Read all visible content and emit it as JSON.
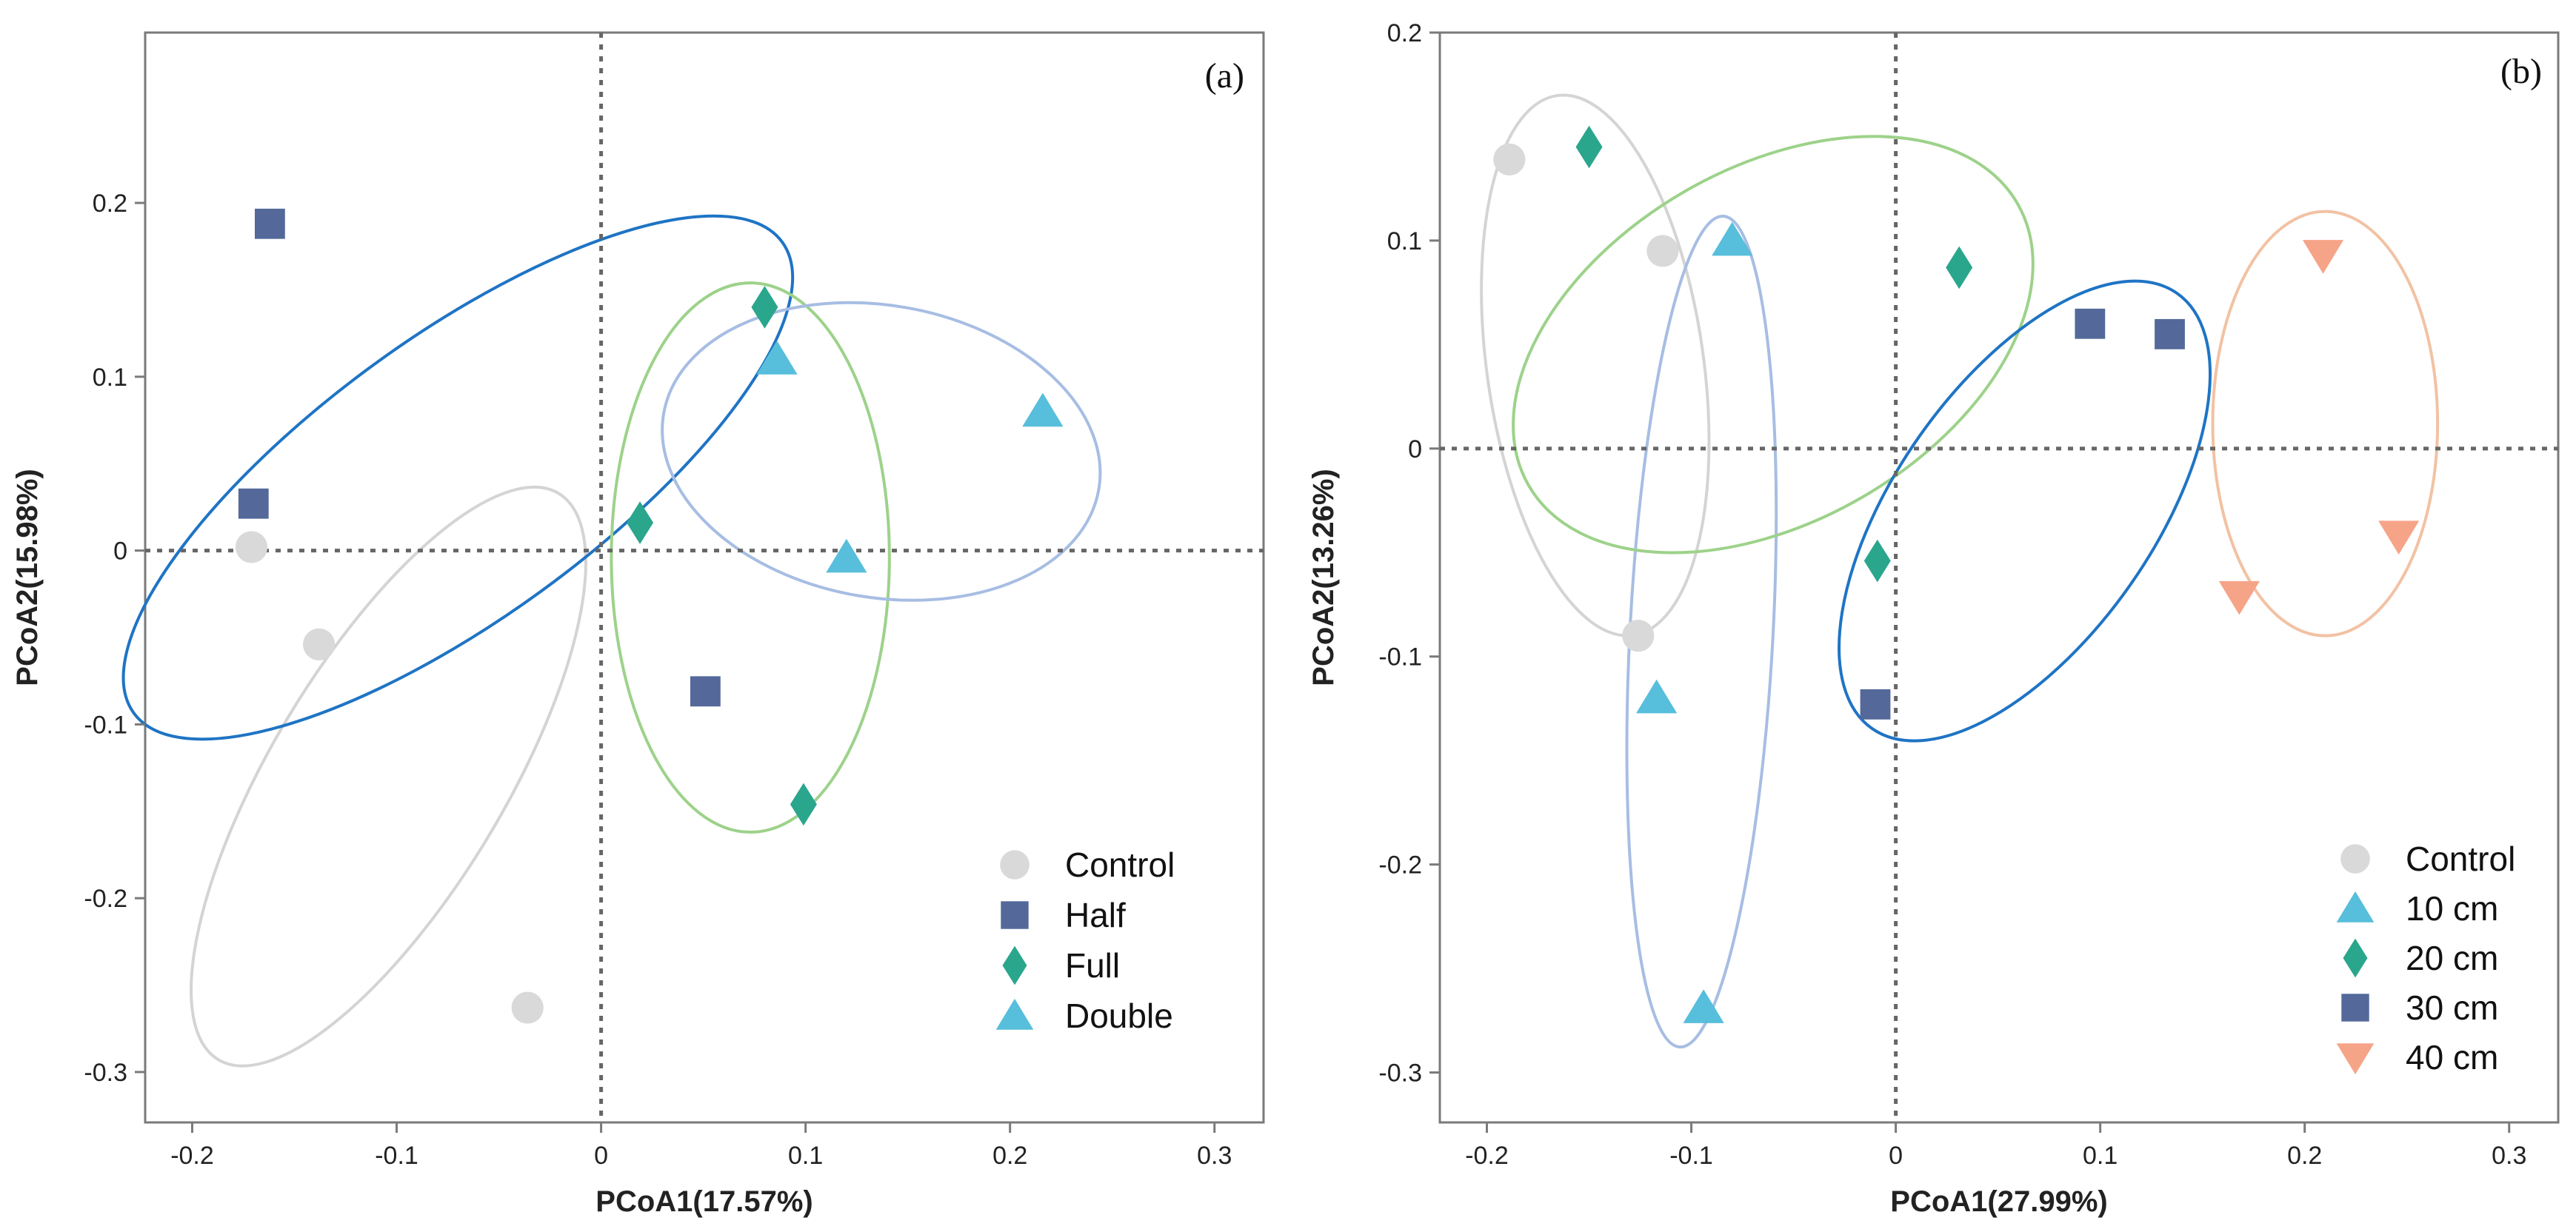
{
  "chart_data": [
    {
      "type": "scatter",
      "panel_label": "(a)",
      "xlabel": "PCoA1(17.57%)",
      "ylabel": "PCoA2(15.98%)",
      "xlim": [
        -0.223,
        0.324
      ],
      "ylim": [
        -0.329,
        0.298
      ],
      "xticks": [
        -0.2,
        -0.1,
        0,
        0.1,
        0.2,
        0.3
      ],
      "xtick_labels": [
        "-0.2",
        "-0.1",
        "0",
        "0.1",
        "0.2",
        "0.3"
      ],
      "yticks": [
        0.2,
        0.1,
        0,
        -0.1,
        -0.2,
        -0.3
      ],
      "ytick_labels": [
        "0.2",
        "0.1",
        "0",
        "-0.1",
        "-0.2",
        "-0.3"
      ],
      "reference_lines": {
        "x": 0,
        "y": 0
      },
      "legend_position": "bottom-right",
      "series": [
        {
          "name": "Control",
          "marker": "circle",
          "color": "#d9d9d9",
          "ellipse_color": "#d4d4d4",
          "points": [
            [
              -0.171,
              0.002
            ],
            [
              -0.138,
              -0.054
            ],
            [
              -0.036,
              -0.263
            ]
          ],
          "ellipse": {
            "center": [
              -0.104,
              -0.13
            ],
            "radii": [
              0.057,
              0.19
            ],
            "angle_deg": 31
          }
        },
        {
          "name": "Half",
          "marker": "square",
          "color": "#54699a",
          "ellipse_color": "#1f74c4",
          "points": [
            [
              -0.162,
              0.188
            ],
            [
              -0.17,
              0.027
            ],
            [
              0.051,
              -0.081
            ]
          ],
          "ellipse": {
            "center": [
              -0.07,
              0.042
            ],
            "radii": [
              0.196,
              0.081
            ],
            "angle_deg": -36
          }
        },
        {
          "name": "Full",
          "marker": "diamond",
          "color": "#2aa68d",
          "ellipse_color": "#9dd28a",
          "points": [
            [
              0.08,
              0.14
            ],
            [
              0.019,
              0.016
            ],
            [
              0.099,
              -0.146
            ]
          ],
          "ellipse": {
            "center": [
              0.073,
              -0.004
            ],
            "radii": [
              0.068,
              0.158
            ],
            "angle_deg": 0
          }
        },
        {
          "name": "Double",
          "marker": "triangle-up",
          "color": "#57bedb",
          "ellipse_color": "#a7bde3",
          "points": [
            [
              0.086,
              0.11
            ],
            [
              0.216,
              0.08
            ],
            [
              0.12,
              -0.004
            ]
          ],
          "ellipse": {
            "center": [
              0.137,
              0.057
            ],
            "radii": [
              0.108,
              0.084
            ],
            "angle_deg": 10
          }
        }
      ]
    },
    {
      "type": "scatter",
      "panel_label": "(b)",
      "xlabel": "PCoA1(27.99%)",
      "ylabel": "PCoA2(13.26%)",
      "xlim": [
        -0.223,
        0.324
      ],
      "ylim": [
        -0.324,
        0.2
      ],
      "xticks": [
        -0.2,
        -0.1,
        0,
        0.1,
        0.2,
        0.3
      ],
      "xtick_labels": [
        "-0.2",
        "-0.1",
        "0",
        "0.1",
        "0.2",
        "0.3"
      ],
      "yticks": [
        0.2,
        0.1,
        0,
        -0.1,
        -0.2,
        -0.3
      ],
      "ytick_labels": [
        "0.2",
        "0.1",
        "0",
        "-0.1",
        "-0.2",
        "-0.3"
      ],
      "reference_lines": {
        "x": 0,
        "y": 0
      },
      "legend_position": "bottom-right",
      "series": [
        {
          "name": "Control",
          "marker": "circle",
          "color": "#d9d9d9",
          "ellipse_color": "#d4d4d4",
          "points": [
            [
              -0.189,
              0.139
            ],
            [
              -0.114,
              0.095
            ],
            [
              -0.126,
              -0.09
            ]
          ],
          "ellipse": {
            "center": [
              -0.147,
              0.04
            ],
            "radii": [
              0.053,
              0.131
            ],
            "angle_deg": -8
          }
        },
        {
          "name": "10 cm",
          "marker": "triangle-up",
          "color": "#57bedb",
          "ellipse_color": "#a7bde3",
          "points": [
            [
              -0.08,
              0.1
            ],
            [
              -0.117,
              -0.12
            ],
            [
              -0.094,
              -0.269
            ]
          ],
          "ellipse": {
            "center": [
              -0.095,
              -0.088
            ],
            "radii": [
              0.035,
              0.2
            ],
            "angle_deg": 3
          }
        },
        {
          "name": "20 cm",
          "marker": "diamond",
          "color": "#2aa68d",
          "ellipse_color": "#9dd28a",
          "points": [
            [
              -0.15,
              0.145
            ],
            [
              0.031,
              0.087
            ],
            [
              -0.009,
              -0.054
            ]
          ],
          "ellipse": {
            "center": [
              -0.06,
              0.05
            ],
            "radii": [
              0.138,
              0.085
            ],
            "angle_deg": -30
          }
        },
        {
          "name": "30 cm",
          "marker": "square",
          "color": "#54699a",
          "ellipse_color": "#1f74c4",
          "points": [
            [
              0.095,
              0.06
            ],
            [
              0.134,
              0.055
            ],
            [
              -0.01,
              -0.123
            ]
          ],
          "ellipse": {
            "center": [
              0.063,
              -0.03
            ],
            "radii": [
              0.13,
              0.062
            ],
            "angle_deg": -55
          }
        },
        {
          "name": "40 cm",
          "marker": "triangle-down",
          "color": "#f6a488",
          "ellipse_color": "#f2c2a3",
          "points": [
            [
              0.209,
              0.093
            ],
            [
              0.246,
              -0.042
            ],
            [
              0.168,
              -0.071
            ]
          ],
          "ellipse": {
            "center": [
              0.21,
              0.012
            ],
            "radii": [
              0.055,
              0.102
            ],
            "angle_deg": 0
          }
        }
      ]
    }
  ]
}
